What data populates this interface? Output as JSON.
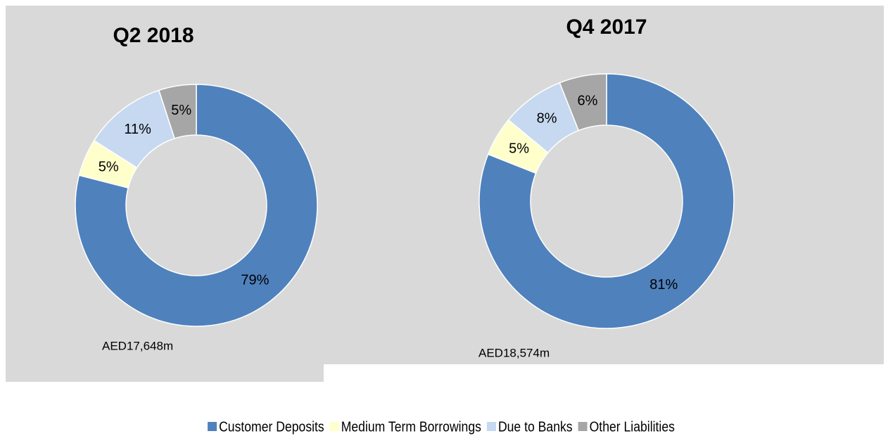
{
  "chart_data": [
    {
      "type": "pie",
      "donut": true,
      "title": "Q2 2018",
      "categories": [
        "Customer Deposits",
        "Medium Term Borrowings",
        "Due to Banks",
        "Other Liabilities"
      ],
      "values": [
        79,
        5,
        11,
        5
      ],
      "value_labels": [
        "79%",
        "5%",
        "11%",
        "5%"
      ],
      "colors": [
        "#4f81bd",
        "#ffffcc",
        "#c6d9f1",
        "#a6a6a6"
      ],
      "annotation": "AED17,648m"
    },
    {
      "type": "pie",
      "donut": true,
      "title": "Q4 2017",
      "categories": [
        "Customer Deposits",
        "Medium Term Borrowings",
        "Due to Banks",
        "Other Liabilities"
      ],
      "values": [
        81,
        5,
        8,
        6
      ],
      "value_labels": [
        "81%",
        "5%",
        "8%",
        "6%"
      ],
      "colors": [
        "#4f81bd",
        "#ffffcc",
        "#c6d9f1",
        "#a6a6a6"
      ],
      "annotation": "AED18,574m"
    }
  ]
}
